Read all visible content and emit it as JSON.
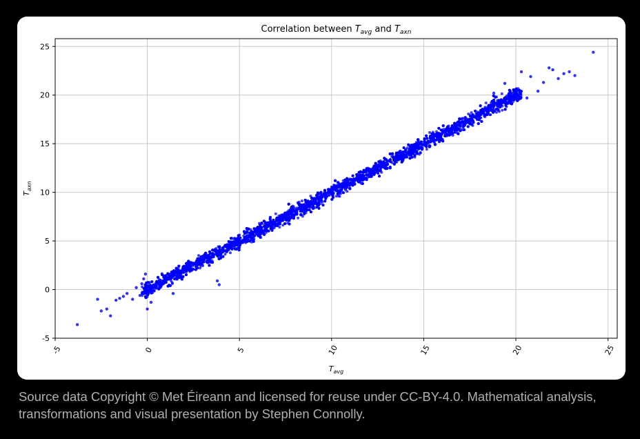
{
  "caption": "Source data Copyright © Met Éireann and licensed for reuse under CC-BY-4.0. Mathematical analysis, transformations and visual presentation by Stephen Connolly.",
  "chart_data": {
    "type": "scatter",
    "title": {
      "prefix": "Correlation between ",
      "a_base": "T",
      "a_sub": "avg",
      "mid": " and ",
      "b_base": "T",
      "b_sub": "axn"
    },
    "xlabel": {
      "base": "T",
      "sub": "avg"
    },
    "ylabel": {
      "base": "T",
      "sub": "axn"
    },
    "xlim": [
      -5,
      25.5
    ],
    "ylim": [
      -5,
      25.8
    ],
    "xticks": [
      -5,
      0,
      5,
      10,
      15,
      20,
      25
    ],
    "yticks": [
      -5,
      0,
      5,
      10,
      15,
      20,
      25
    ],
    "grid": true,
    "marker_color": "#0000ff",
    "series": [
      {
        "note_points": "bulk cloud approximated along y≈x; outliers listed explicitly",
        "trend": {
          "slope": 1.0,
          "intercept": 0.0,
          "x_range": [
            0,
            20
          ],
          "spread": 0.9,
          "count": 6000
        },
        "points": [
          [
            -3.8,
            -3.6
          ],
          [
            -2.7,
            -1.0
          ],
          [
            -2.5,
            -2.2
          ],
          [
            -2.2,
            -2.0
          ],
          [
            -2.0,
            -2.7
          ],
          [
            -1.7,
            -1.1
          ],
          [
            -1.5,
            -0.9
          ],
          [
            -1.3,
            -0.7
          ],
          [
            -1.1,
            -0.4
          ],
          [
            -0.8,
            -1.0
          ],
          [
            -0.6,
            0.2
          ],
          [
            -0.4,
            -0.6
          ],
          [
            -0.3,
            0.6
          ],
          [
            -0.2,
            1.1
          ],
          [
            -0.1,
            1.6
          ],
          [
            0.0,
            -2.0
          ],
          [
            0.2,
            -1.3
          ],
          [
            1.4,
            -0.4
          ],
          [
            3.9,
            0.5
          ],
          [
            3.8,
            0.9
          ],
          [
            21.5,
            21.3
          ],
          [
            21.8,
            22.8
          ],
          [
            22.0,
            22.6
          ],
          [
            22.3,
            21.7
          ],
          [
            22.6,
            22.2
          ],
          [
            22.9,
            22.4
          ],
          [
            23.2,
            22.0
          ],
          [
            24.2,
            24.4
          ],
          [
            20.3,
            22.4
          ],
          [
            20.8,
            21.9
          ],
          [
            21.2,
            20.4
          ],
          [
            20.6,
            19.7
          ],
          [
            19.4,
            21.2
          ],
          [
            18.8,
            20.2
          ]
        ]
      }
    ]
  }
}
